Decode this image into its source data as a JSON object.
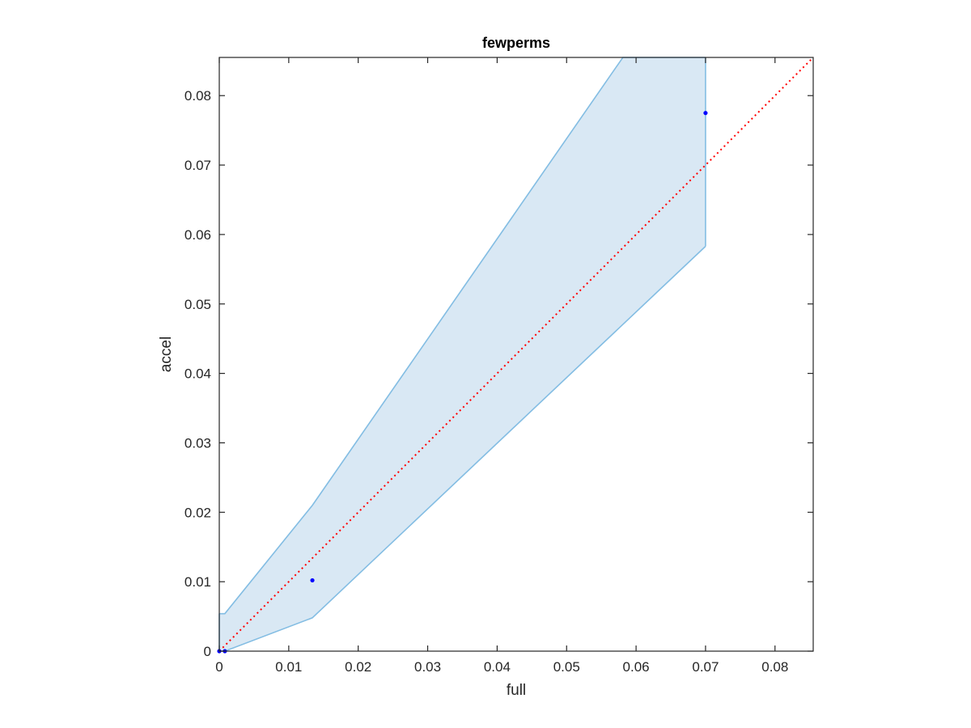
{
  "chart_data": {
    "type": "scatter",
    "title": "fewperms",
    "xlabel": "full",
    "ylabel": "accel",
    "xlim": [
      0,
      0.0855
    ],
    "ylim": [
      0,
      0.0855
    ],
    "xticks": [
      0,
      0.01,
      0.02,
      0.03,
      0.04,
      0.05,
      0.06,
      0.07,
      0.08
    ],
    "yticks": [
      0,
      0.01,
      0.02,
      0.03,
      0.04,
      0.05,
      0.06,
      0.07,
      0.08
    ],
    "xtick_labels": [
      "0",
      "0.01",
      "0.02",
      "0.03",
      "0.04",
      "0.05",
      "0.06",
      "0.07",
      "0.08"
    ],
    "ytick_labels": [
      "0",
      "0.01",
      "0.02",
      "0.03",
      "0.04",
      "0.05",
      "0.06",
      "0.07",
      "0.08"
    ],
    "grid": false,
    "points": {
      "x": [
        0,
        0.0008,
        0.0134,
        0.07
      ],
      "y": [
        0,
        0,
        0.0102,
        0.0775
      ]
    },
    "confidence_band": {
      "upper": [
        [
          0,
          0.0054
        ],
        [
          0.0008,
          0.0054
        ],
        [
          0.0134,
          0.021
        ],
        [
          0.0581,
          0.0855
        ],
        [
          0.07,
          0.0855
        ]
      ],
      "lower": [
        [
          0,
          0
        ],
        [
          0.0008,
          0
        ],
        [
          0.0134,
          0.0048
        ],
        [
          0.07,
          0.0583
        ]
      ]
    },
    "reference_line": {
      "x": [
        0,
        0.0855
      ],
      "y": [
        0,
        0.0855
      ],
      "style": "dotted"
    },
    "colors": {
      "points": "#0000ff",
      "band_fill": "#d9e8f4",
      "band_edge": "#83bde3",
      "reference_line": "#ff0000",
      "axes": "#262626"
    }
  }
}
